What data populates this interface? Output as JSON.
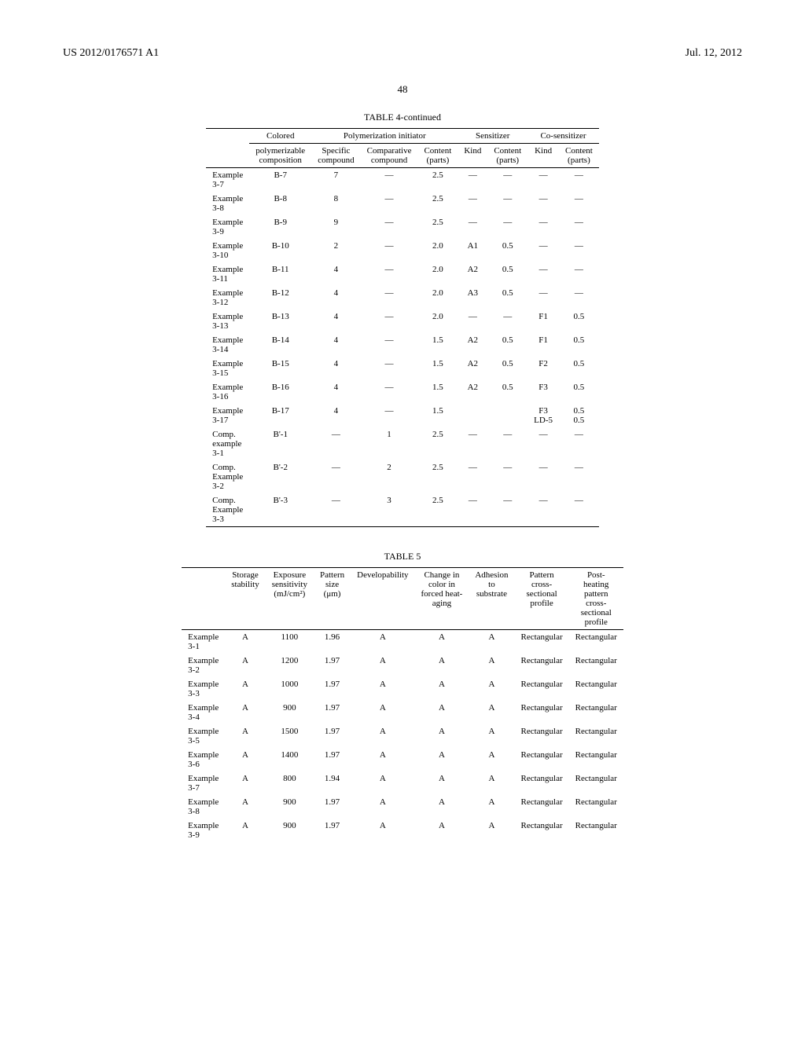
{
  "header": {
    "pub_number": "US 2012/0176571 A1",
    "date": "Jul. 12, 2012",
    "page": "48"
  },
  "table4": {
    "title": "TABLE 4-continued",
    "group_headers": {
      "colored": "Colored",
      "poly_init": "Polymerization initiator",
      "sens": "Sensitizer",
      "cosens": "Co-sensitizer"
    },
    "col_headers": {
      "polymerizable": "polymerizable\ncomposition",
      "specific": "Specific\ncompound",
      "comparative": "Comparative\ncompound",
      "content1": "Content\n(parts)",
      "kind1": "Kind",
      "content2": "Content\n(parts)",
      "kind2": "Kind",
      "content3": "Content\n(parts)"
    },
    "rows": [
      {
        "label": "Example\n3-7",
        "poly": "B-7",
        "spec": "7",
        "comp": "—",
        "c1": "2.5",
        "k1": "—",
        "c2": "—",
        "k2": "—",
        "c3": "—"
      },
      {
        "label": "Example\n3-8",
        "poly": "B-8",
        "spec": "8",
        "comp": "—",
        "c1": "2.5",
        "k1": "—",
        "c2": "—",
        "k2": "—",
        "c3": "—"
      },
      {
        "label": "Example\n3-9",
        "poly": "B-9",
        "spec": "9",
        "comp": "—",
        "c1": "2.5",
        "k1": "—",
        "c2": "—",
        "k2": "—",
        "c3": "—"
      },
      {
        "label": "Example\n3-10",
        "poly": "B-10",
        "spec": "2",
        "comp": "—",
        "c1": "2.0",
        "k1": "A1",
        "c2": "0.5",
        "k2": "—",
        "c3": "—"
      },
      {
        "label": "Example\n3-11",
        "poly": "B-11",
        "spec": "4",
        "comp": "—",
        "c1": "2.0",
        "k1": "A2",
        "c2": "0.5",
        "k2": "—",
        "c3": "—"
      },
      {
        "label": "Example\n3-12",
        "poly": "B-12",
        "spec": "4",
        "comp": "—",
        "c1": "2.0",
        "k1": "A3",
        "c2": "0.5",
        "k2": "—",
        "c3": "—"
      },
      {
        "label": "Example\n3-13",
        "poly": "B-13",
        "spec": "4",
        "comp": "—",
        "c1": "2.0",
        "k1": "—",
        "c2": "—",
        "k2": "F1",
        "c3": "0.5"
      },
      {
        "label": "Example\n3-14",
        "poly": "B-14",
        "spec": "4",
        "comp": "—",
        "c1": "1.5",
        "k1": "A2",
        "c2": "0.5",
        "k2": "F1",
        "c3": "0.5"
      },
      {
        "label": "Example\n3-15",
        "poly": "B-15",
        "spec": "4",
        "comp": "—",
        "c1": "1.5",
        "k1": "A2",
        "c2": "0.5",
        "k2": "F2",
        "c3": "0.5"
      },
      {
        "label": "Example\n3-16",
        "poly": "B-16",
        "spec": "4",
        "comp": "—",
        "c1": "1.5",
        "k1": "A2",
        "c2": "0.5",
        "k2": "F3",
        "c3": "0.5"
      },
      {
        "label": "Example\n3-17",
        "poly": "B-17",
        "spec": "4",
        "comp": "—",
        "c1": "1.5",
        "k1": "",
        "c2": "",
        "k2": "F3\nLD-5",
        "c3": "0.5\n0.5"
      },
      {
        "label": "Comp.\nexample\n3-1",
        "poly": "B'-1",
        "spec": "—",
        "comp": "1",
        "c1": "2.5",
        "k1": "—",
        "c2": "—",
        "k2": "—",
        "c3": "—"
      },
      {
        "label": "Comp.\nExample\n3-2",
        "poly": "B'-2",
        "spec": "—",
        "comp": "2",
        "c1": "2.5",
        "k1": "—",
        "c2": "—",
        "k2": "—",
        "c3": "—"
      },
      {
        "label": "Comp.\nExample\n3-3",
        "poly": "B'-3",
        "spec": "—",
        "comp": "3",
        "c1": "2.5",
        "k1": "—",
        "c2": "—",
        "k2": "—",
        "c3": "—"
      }
    ]
  },
  "table5": {
    "title": "TABLE 5",
    "col_headers": {
      "storage": "Storage\nstability",
      "exposure": "Exposure\nsensitivity\n(mJ/cm²)",
      "pattern": "Pattern\nsize\n(μm)",
      "develop": "Developability",
      "change": "Change in\ncolor in\nforced heat-\naging",
      "adhesion": "Adhesion\nto\nsubstrate",
      "profile": "Pattern\ncross-\nsectional\nprofile",
      "post": "Post-\nheating\npattern\ncross-\nsectional\nprofile"
    },
    "rows": [
      {
        "label": "Example\n3-1",
        "s": "A",
        "e": "1100",
        "p": "1.96",
        "d": "A",
        "c": "A",
        "a": "A",
        "pr": "Rectangular",
        "po": "Rectangular"
      },
      {
        "label": "Example\n3-2",
        "s": "A",
        "e": "1200",
        "p": "1.97",
        "d": "A",
        "c": "A",
        "a": "A",
        "pr": "Rectangular",
        "po": "Rectangular"
      },
      {
        "label": "Example\n3-3",
        "s": "A",
        "e": "1000",
        "p": "1.97",
        "d": "A",
        "c": "A",
        "a": "A",
        "pr": "Rectangular",
        "po": "Rectangular"
      },
      {
        "label": "Example\n3-4",
        "s": "A",
        "e": "900",
        "p": "1.97",
        "d": "A",
        "c": "A",
        "a": "A",
        "pr": "Rectangular",
        "po": "Rectangular"
      },
      {
        "label": "Example\n3-5",
        "s": "A",
        "e": "1500",
        "p": "1.97",
        "d": "A",
        "c": "A",
        "a": "A",
        "pr": "Rectangular",
        "po": "Rectangular"
      },
      {
        "label": "Example\n3-6",
        "s": "A",
        "e": "1400",
        "p": "1.97",
        "d": "A",
        "c": "A",
        "a": "A",
        "pr": "Rectangular",
        "po": "Rectangular"
      },
      {
        "label": "Example\n3-7",
        "s": "A",
        "e": "800",
        "p": "1.94",
        "d": "A",
        "c": "A",
        "a": "A",
        "pr": "Rectangular",
        "po": "Rectangular"
      },
      {
        "label": "Example\n3-8",
        "s": "A",
        "e": "900",
        "p": "1.97",
        "d": "A",
        "c": "A",
        "a": "A",
        "pr": "Rectangular",
        "po": "Rectangular"
      },
      {
        "label": "Example\n3-9",
        "s": "A",
        "e": "900",
        "p": "1.97",
        "d": "A",
        "c": "A",
        "a": "A",
        "pr": "Rectangular",
        "po": "Rectangular"
      }
    ]
  }
}
